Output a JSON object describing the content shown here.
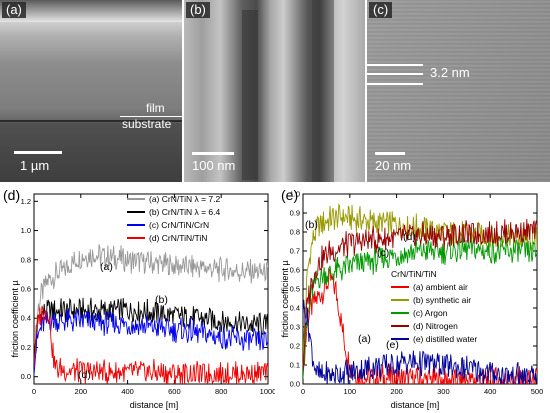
{
  "micrographs": {
    "a": {
      "label": "(a)",
      "scale": "1 µm",
      "film": "film",
      "substrate": "substrate"
    },
    "b": {
      "label": "(b)",
      "scale": "100 nm"
    },
    "c": {
      "label": "(c)",
      "scale": "20 nm",
      "spacing": "3.2 nm"
    }
  },
  "chart_data": [
    {
      "panel_label": "(d)",
      "type": "line",
      "xlabel": "distance [m]",
      "ylabel": "friction coefficient µ",
      "xlim": [
        0,
        1000
      ],
      "ylim": [
        -0.05,
        1.25
      ],
      "xticks": [
        "0",
        "200",
        "400",
        "600",
        "800",
        "1000"
      ],
      "yticks": [
        "0.0",
        "0.2",
        "0.4",
        "0.6",
        "0.8",
        "1.0",
        "1.2"
      ],
      "legend_position": "top-right",
      "series": [
        {
          "name": "(a) CrN/TiN λ = 7.2",
          "tag": "(a)",
          "color": "#999999",
          "x": [
            0,
            10,
            20,
            40,
            60,
            100,
            150,
            200,
            250,
            300,
            400,
            500,
            600,
            700,
            800,
            900,
            1000
          ],
          "y": [
            0.1,
            0.35,
            0.5,
            0.6,
            0.66,
            0.7,
            0.76,
            0.82,
            0.84,
            0.82,
            0.8,
            0.78,
            0.76,
            0.75,
            0.73,
            0.72,
            0.71
          ]
        },
        {
          "name": "(b) CrN/TiN λ = 6.4",
          "tag": "(b)",
          "color": "#000000",
          "x": [
            0,
            10,
            20,
            40,
            60,
            100,
            200,
            300,
            400,
            500,
            600,
            700,
            800,
            900,
            1000
          ],
          "y": [
            0.1,
            0.3,
            0.4,
            0.44,
            0.45,
            0.45,
            0.45,
            0.45,
            0.46,
            0.44,
            0.42,
            0.4,
            0.38,
            0.36,
            0.35
          ]
        },
        {
          "name": "(c) CrN/TiN/CrN",
          "tag": "(c)",
          "color": "#0000ee",
          "x": [
            0,
            10,
            20,
            40,
            60,
            100,
            200,
            300,
            400,
            500,
            600,
            700,
            800,
            900,
            1000
          ],
          "y": [
            0.1,
            0.2,
            0.3,
            0.36,
            0.38,
            0.38,
            0.38,
            0.37,
            0.36,
            0.34,
            0.32,
            0.3,
            0.27,
            0.25,
            0.24
          ]
        },
        {
          "name": "(d) CrN/TiN/TiN",
          "tag": "(d)",
          "color": "#ee0000",
          "x": [
            0,
            10,
            20,
            30,
            40,
            50,
            60,
            70,
            80,
            90,
            100,
            150,
            200,
            300,
            400,
            500,
            600,
            700,
            800,
            900,
            1000
          ],
          "y": [
            0.1,
            0.3,
            0.4,
            0.44,
            0.45,
            0.45,
            0.44,
            0.35,
            0.15,
            0.07,
            0.05,
            0.04,
            0.04,
            0.03,
            0.03,
            0.03,
            0.02,
            0.02,
            0.02,
            0.02,
            0.02
          ]
        }
      ]
    },
    {
      "panel_label": "(e)",
      "type": "line",
      "xlabel": "distance [m]",
      "ylabel": "friction coefficient µ",
      "xlim": [
        0,
        500
      ],
      "ylim": [
        0,
        1.0
      ],
      "xticks": [
        "0",
        "100",
        "200",
        "300",
        "400",
        "500"
      ],
      "yticks": [
        "0.0",
        "0.1",
        "0.2",
        "0.3",
        "0.4",
        "0.5",
        "0.6",
        "0.7",
        "0.8",
        "0.9",
        "1.0"
      ],
      "legend_title": "CrN/TiN/TiN",
      "legend_position": "center-right",
      "series": [
        {
          "name": "(a) ambient air",
          "tag": "(a)",
          "color": "#ee0000",
          "x": [
            0,
            5,
            10,
            20,
            30,
            40,
            50,
            60,
            70,
            80,
            90,
            100,
            110,
            120,
            150,
            200,
            300,
            400,
            500
          ],
          "y": [
            0.1,
            0.2,
            0.35,
            0.42,
            0.45,
            0.48,
            0.52,
            0.55,
            0.5,
            0.35,
            0.2,
            0.1,
            0.06,
            0.04,
            0.03,
            0.03,
            0.02,
            0.02,
            0.02
          ]
        },
        {
          "name": "(b) synthetic air",
          "tag": "(b)",
          "color": "#999900",
          "x": [
            0,
            5,
            10,
            20,
            30,
            50,
            80,
            100,
            150,
            200,
            250,
            300,
            350,
            400,
            450,
            500
          ],
          "y": [
            0.1,
            0.4,
            0.6,
            0.75,
            0.82,
            0.86,
            0.88,
            0.87,
            0.85,
            0.84,
            0.82,
            0.8,
            0.79,
            0.78,
            0.77,
            0.76
          ]
        },
        {
          "name": "(c) Argon",
          "tag": "(c)",
          "color": "#009900",
          "x": [
            0,
            10,
            20,
            30,
            50,
            80,
            100,
            150,
            200,
            250,
            300,
            350,
            400,
            450,
            500
          ],
          "y": [
            0.1,
            0.35,
            0.5,
            0.55,
            0.58,
            0.6,
            0.62,
            0.65,
            0.68,
            0.7,
            0.7,
            0.71,
            0.7,
            0.7,
            0.69
          ]
        },
        {
          "name": "(d) Nitrogen",
          "tag": "(d)",
          "color": "#990000",
          "x": [
            0,
            5,
            10,
            20,
            30,
            50,
            80,
            100,
            150,
            200,
            250,
            300,
            350,
            400,
            450,
            500
          ],
          "y": [
            0.1,
            0.3,
            0.45,
            0.55,
            0.62,
            0.68,
            0.72,
            0.74,
            0.76,
            0.77,
            0.78,
            0.78,
            0.79,
            0.79,
            0.8,
            0.8
          ]
        },
        {
          "name": "(e) distilled water",
          "tag": "(e)",
          "color": "#000099",
          "x": [
            0,
            10,
            20,
            30,
            40,
            60,
            100,
            150,
            200,
            220,
            250,
            300,
            350,
            400,
            450,
            500
          ],
          "y": [
            0.4,
            0.35,
            0.15,
            0.05,
            0.04,
            0.05,
            0.06,
            0.09,
            0.1,
            0.12,
            0.11,
            0.1,
            0.08,
            0.06,
            0.04,
            0.03
          ]
        }
      ]
    }
  ]
}
